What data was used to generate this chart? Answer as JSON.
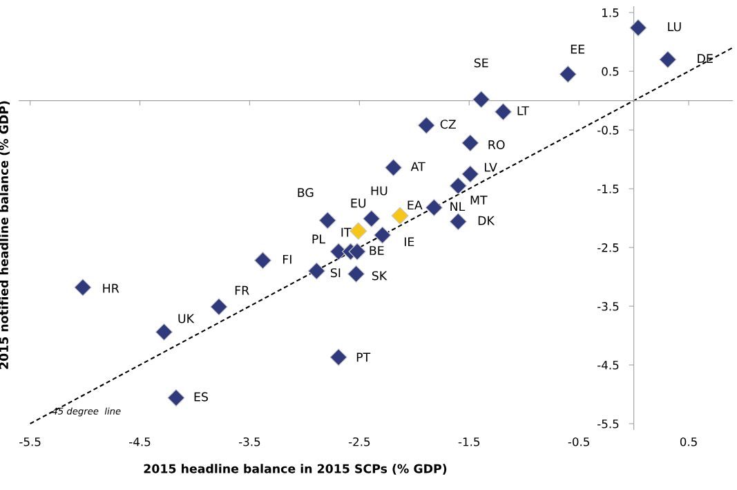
{
  "chart_data": {
    "type": "scatter",
    "xlabel": "2015 headline balance in 2015 SCPs (% GDP)",
    "ylabel": "2015 notified headline balance (% GDP)",
    "xlim": [
      -5.6,
      0.9
    ],
    "ylim": [
      -5.6,
      1.6
    ],
    "xticks": [
      -5.5,
      -4.5,
      -3.5,
      -2.5,
      -1.5,
      -0.5,
      0.5
    ],
    "yticks": [
      -5.5,
      -4.5,
      -3.5,
      -2.5,
      -1.5,
      -0.5,
      0.5,
      1.5
    ],
    "grid": false,
    "legend": false,
    "marker": "diamond",
    "series": [
      {
        "type": "line",
        "color": "#000000",
        "line_style": "dashed",
        "marker": "none",
        "x": [
          -5.5,
          0.9
        ],
        "values": [
          -5.5,
          0.9
        ]
      },
      {
        "color": "#2e3a7c",
        "x": [
          0.04,
          0.31,
          -0.6,
          -1.39,
          -1.19,
          -1.89,
          -1.49,
          -2.19,
          -1.49,
          -1.6,
          -1.82,
          -1.6,
          -2.39,
          -2.79,
          -2.29,
          -2.69,
          -2.58,
          -2.52,
          -2.89,
          -2.53,
          -3.38,
          -5.02,
          -3.78,
          -4.28,
          -2.69,
          -4.17
        ],
        "values": [
          1.24,
          0.7,
          0.45,
          0.02,
          -0.19,
          -0.42,
          -0.72,
          -1.14,
          -1.25,
          -1.45,
          -1.82,
          -2.06,
          -2.01,
          -2.04,
          -2.29,
          -2.57,
          -2.57,
          -2.57,
          -2.9,
          -2.95,
          -2.72,
          -3.18,
          -3.51,
          -3.94,
          -4.37,
          -5.06
        ]
      },
      {
        "color": "#f5c518",
        "x": [
          -2.13,
          -2.51
        ],
        "values": [
          -1.96,
          -2.22
        ]
      }
    ],
    "annotations": [
      {
        "text": "LU",
        "x": 0.04,
        "y": 1.24
      },
      {
        "text": "DE",
        "x": 0.31,
        "y": 0.7
      },
      {
        "text": "EE",
        "x": -0.6,
        "y": 0.45
      },
      {
        "text": "SE",
        "x": -1.39,
        "y": 0.02
      },
      {
        "text": "LT",
        "x": -1.19,
        "y": -0.19
      },
      {
        "text": "CZ",
        "x": -1.89,
        "y": -0.42
      },
      {
        "text": "RO",
        "x": -1.49,
        "y": -0.72
      },
      {
        "text": "AT",
        "x": -2.19,
        "y": -1.14
      },
      {
        "text": "LV",
        "x": -1.49,
        "y": -1.25
      },
      {
        "text": "MT",
        "x": -1.6,
        "y": -1.45
      },
      {
        "text": "NL",
        "x": -1.82,
        "y": -1.82
      },
      {
        "text": "DK",
        "x": -1.6,
        "y": -2.06
      },
      {
        "text": "HU",
        "x": -2.39,
        "y": -2.01
      },
      {
        "text": "BG",
        "x": -2.79,
        "y": -2.04
      },
      {
        "text": "IE",
        "x": -2.29,
        "y": -2.29
      },
      {
        "text": "PL",
        "x": -2.69,
        "y": -2.57
      },
      {
        "text": "IT",
        "x": -2.58,
        "y": -2.57
      },
      {
        "text": "BE",
        "x": -2.52,
        "y": -2.57
      },
      {
        "text": "SI",
        "x": -2.89,
        "y": -2.9
      },
      {
        "text": "SK",
        "x": -2.53,
        "y": -2.95
      },
      {
        "text": "FI",
        "x": -3.38,
        "y": -2.72
      },
      {
        "text": "HR",
        "x": -5.02,
        "y": -3.18
      },
      {
        "text": "FR",
        "x": -3.78,
        "y": -3.51
      },
      {
        "text": "UK",
        "x": -4.28,
        "y": -3.94
      },
      {
        "text": "PT",
        "x": -2.69,
        "y": -4.37
      },
      {
        "text": "ES",
        "x": -4.17,
        "y": -5.06
      },
      {
        "text": "EA",
        "x": -2.13,
        "y": -1.96
      },
      {
        "text": "EU",
        "x": -2.51,
        "y": -2.22
      },
      {
        "text": "45 degree  line",
        "x": -5.3,
        "y": -5.3
      }
    ]
  }
}
